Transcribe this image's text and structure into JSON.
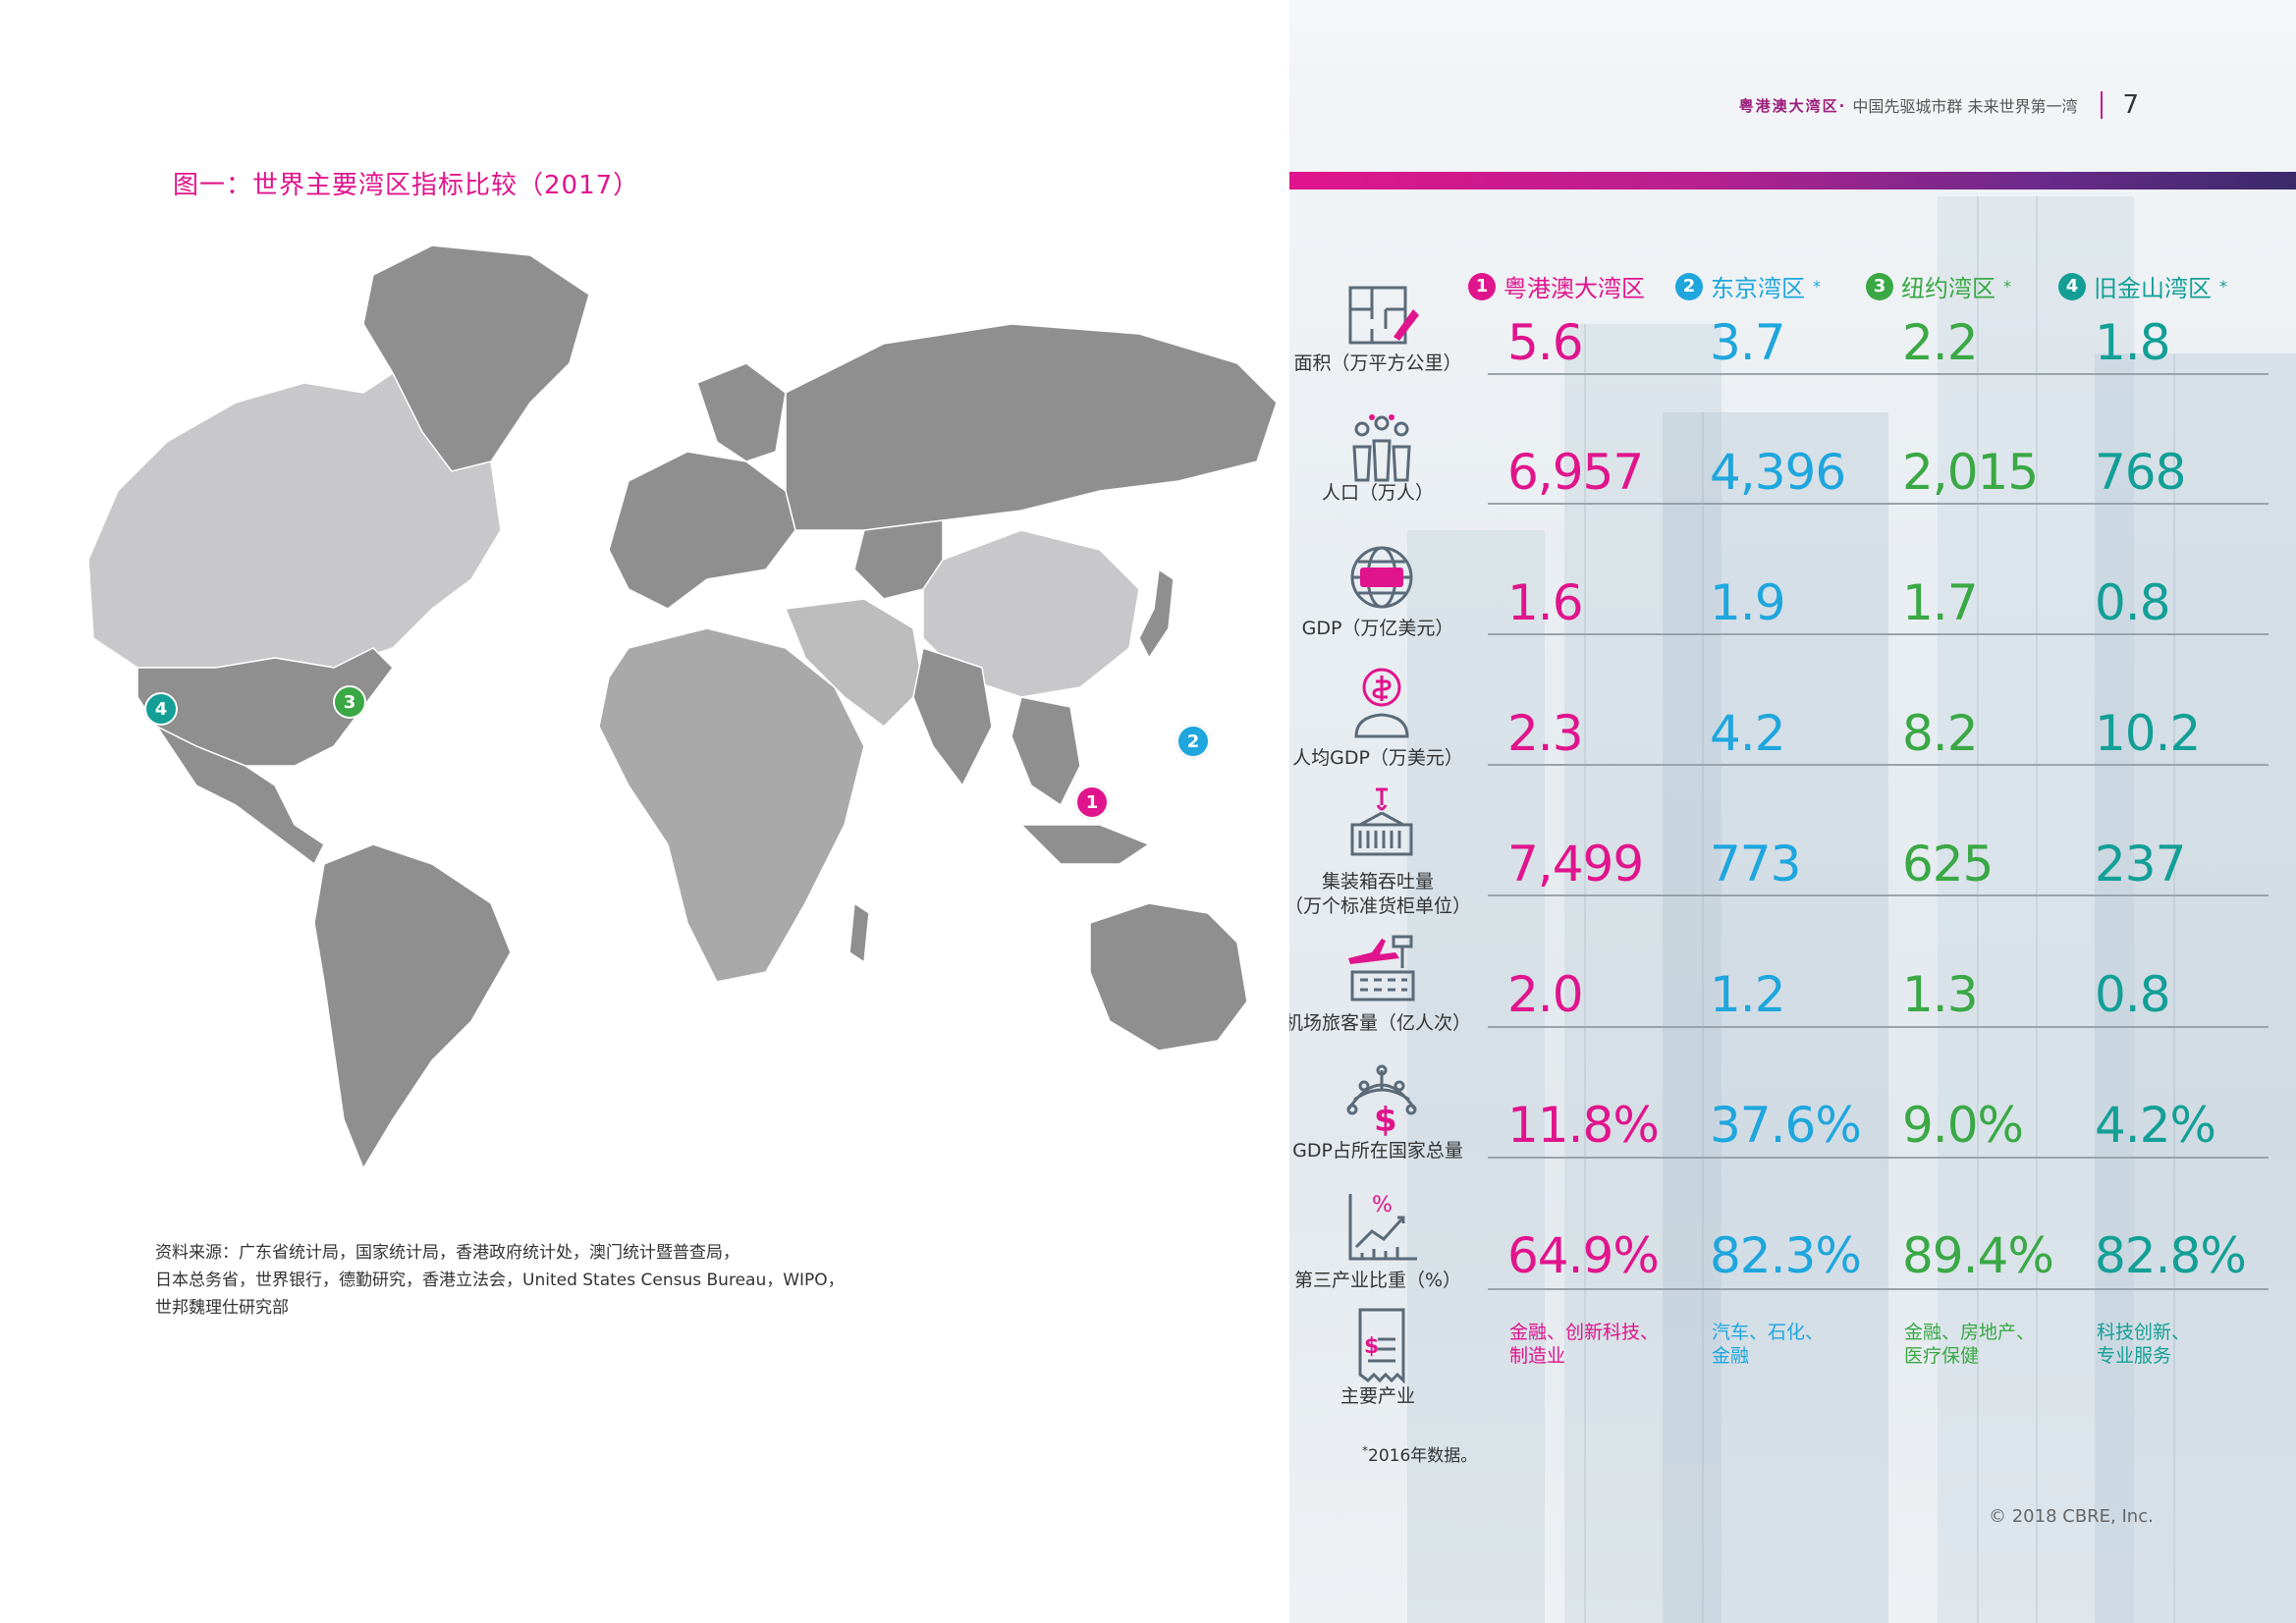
{
  "left": {
    "figure_title": "图一：世界主要湾区指标比较（2017）",
    "sources_lines": [
      "资料来源：广东省统计局，国家统计局，香港政府统计处，澳门统计暨普查局，",
      "日本总务省，世界银行，德勤研究，香港立法会，United States Census Bureau，WIPO，",
      "世邦魏理仕研究部"
    ],
    "map_markers": [
      {
        "label": "1",
        "color": "#e0148c"
      },
      {
        "label": "2",
        "color": "#1ea6dd"
      },
      {
        "label": "3",
        "color": "#3aa845"
      },
      {
        "label": "4",
        "color": "#139f96"
      }
    ]
  },
  "right": {
    "running_head": {
      "brand": "粤港澳大湾区·",
      "tagline": "中国先驱城市群  未来世界第一湾",
      "page_number": "7"
    },
    "legend": [
      {
        "num": "1",
        "name": "粤港澳大湾区",
        "star": ""
      },
      {
        "num": "2",
        "name": "东京湾区",
        "star": "*"
      },
      {
        "num": "3",
        "name": "纽约湾区",
        "star": "*"
      },
      {
        "num": "4",
        "name": "旧金山湾区",
        "star": "*"
      }
    ],
    "metrics": [
      {
        "icon": "floor-plan-icon",
        "label": "面积（万平方公里）",
        "values": [
          "5.6",
          "3.7",
          "2.2",
          "1.8"
        ]
      },
      {
        "icon": "population-icon",
        "label": "人口（万人）",
        "values": [
          "6,957",
          "4,396",
          "2,015",
          "768"
        ]
      },
      {
        "icon": "gdp-globe-icon",
        "label": "GDP（万亿美元）",
        "values": [
          "1.6",
          "1.9",
          "1.7",
          "0.8"
        ]
      },
      {
        "icon": "per-capita-gdp-icon",
        "label": "人均GDP（万美元）",
        "values": [
          "2.3",
          "4.2",
          "8.2",
          "10.2"
        ]
      },
      {
        "icon": "container-crane-icon",
        "label": "集装箱吞吐量",
        "label2": "（万个标准货柜单位）",
        "values": [
          "7,499",
          "773",
          "625",
          "237"
        ]
      },
      {
        "icon": "airport-icon",
        "label": "机场旅客量（亿人次）",
        "values": [
          "2.0",
          "1.2",
          "1.3",
          "0.8"
        ]
      },
      {
        "icon": "global-money-icon",
        "label": "GDP占所在国家总量",
        "values": [
          "11.8%",
          "37.6%",
          "9.0%",
          "4.2%"
        ]
      },
      {
        "icon": "growth-chart-icon",
        "label": "第三产业比重（%）",
        "values": [
          "64.9%",
          "82.3%",
          "89.4%",
          "82.8%"
        ]
      }
    ],
    "industries": {
      "icon": "document-money-icon",
      "label": "主要产业",
      "values": [
        [
          "金融、创新科技、",
          "制造业"
        ],
        [
          "汽车、石化、",
          "金融"
        ],
        [
          "金融、房地产、",
          "医疗保健"
        ],
        [
          "科技创新、",
          "专业服务"
        ]
      ]
    },
    "footnote": {
      "star": "*",
      "text": "2016年数据。"
    },
    "copyright": "© 2018 CBRE, Inc."
  }
}
